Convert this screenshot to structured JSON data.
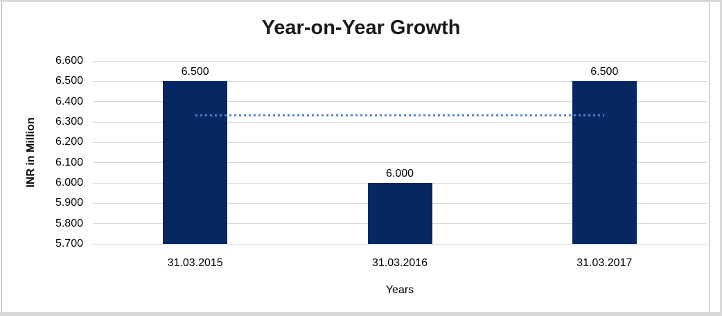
{
  "chart_data": {
    "type": "bar",
    "title": "Year-on-Year Growth",
    "xlabel": "Years",
    "ylabel": "INR in Million",
    "categories": [
      "31.03.2015",
      "31.03.2016",
      "31.03.2017"
    ],
    "values": [
      6500,
      6000,
      6500
    ],
    "bar_labels": [
      "6.500",
      "6.000",
      "6.500"
    ],
    "y_ticks": [
      "6.600",
      "6.500",
      "6.400",
      "6.300",
      "6.200",
      "6.100",
      "6.000",
      "5.900",
      "5.800",
      "5.700"
    ],
    "ylim": [
      5700,
      6600
    ],
    "y_step": 100,
    "grid": true,
    "legend": false,
    "bar_color": "#052862",
    "gridline_color": "#d9d9d9",
    "frame_color_light": "#d9d9d9",
    "frame_color_line": "#a6a6a6",
    "trendline": {
      "type": "linear",
      "value": 6333,
      "style": "dotted",
      "color": "#4a86c8",
      "span": "first-bar-center-to-last-bar-center"
    }
  }
}
